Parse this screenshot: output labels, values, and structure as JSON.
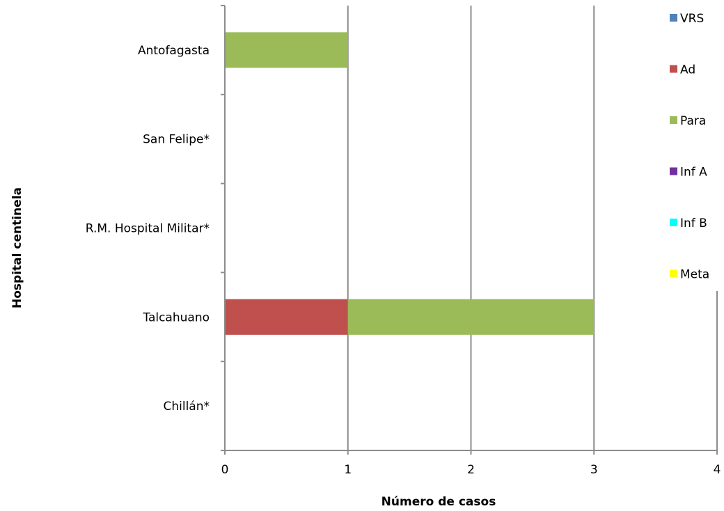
{
  "chart_data": {
    "type": "bar",
    "orientation": "horizontal",
    "stacked": true,
    "title": "",
    "xlabel": "Número de casos",
    "ylabel": "Hospital centinela",
    "xlim": [
      0,
      4
    ],
    "xticks": [
      "0",
      "1",
      "2",
      "3",
      "4"
    ],
    "grid": "vertical",
    "legend_position": "right",
    "categories": [
      "Antofagasta",
      "San Felipe*",
      "R.M. Hospital Militar*",
      "Talcahuano",
      "Chillán*"
    ],
    "series": [
      {
        "name": "VRS",
        "color": "#4F81BD",
        "values": [
          0,
          0,
          0,
          0,
          0
        ]
      },
      {
        "name": "Ad",
        "color": "#C0504D",
        "values": [
          0,
          0,
          0,
          1,
          0
        ]
      },
      {
        "name": "Para",
        "color": "#9BBB59",
        "values": [
          1,
          0,
          0,
          2,
          0
        ]
      },
      {
        "name": "Inf A",
        "color": "#7030A0",
        "values": [
          0,
          0,
          0,
          0,
          0
        ]
      },
      {
        "name": "Inf B",
        "color": "#00FFFF",
        "values": [
          0,
          0,
          0,
          0,
          0
        ]
      },
      {
        "name": "Meta",
        "color": "#FFFF00",
        "values": [
          0,
          0,
          0,
          0,
          0
        ]
      }
    ]
  }
}
